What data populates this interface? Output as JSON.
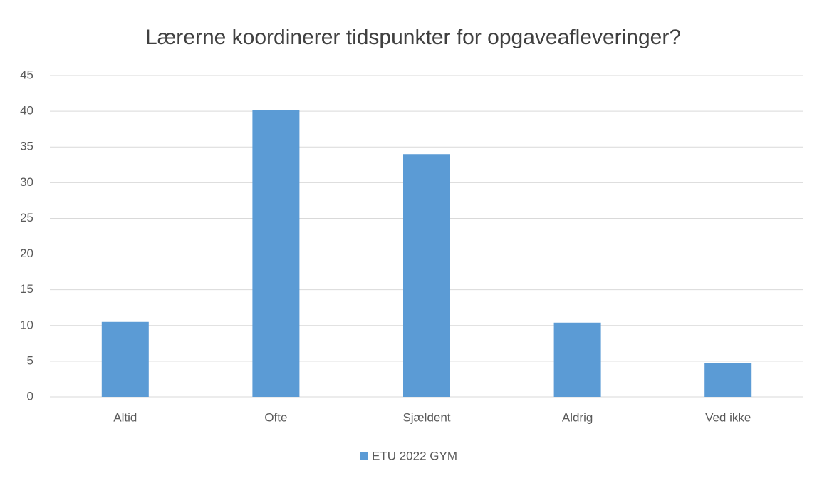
{
  "chart_data": {
    "type": "bar",
    "title": "Lærerne koordinerer tidspunkter for opgaveafleveringer?",
    "categories": [
      "Altid",
      "Ofte",
      "Sjældent",
      "Aldrig",
      "Ved ikke"
    ],
    "series": [
      {
        "name": "ETU 2022 GYM",
        "color": "#5b9bd5",
        "values": [
          10.5,
          40.2,
          34.0,
          10.4,
          4.7
        ]
      }
    ],
    "ylim": [
      0,
      45
    ],
    "yticks": [
      0,
      5,
      10,
      15,
      20,
      25,
      30,
      35,
      40,
      45
    ],
    "grid": true,
    "legend": "bottom"
  }
}
